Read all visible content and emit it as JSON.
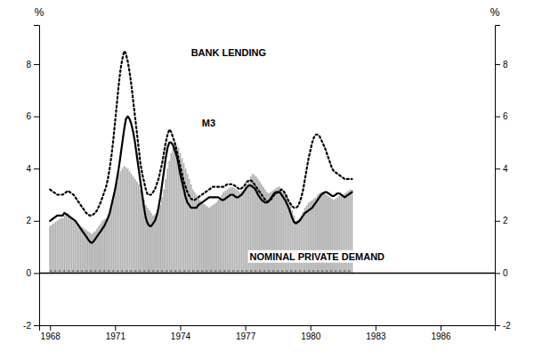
{
  "chart_data": {
    "type": "bar",
    "ylabel": "%",
    "y2label": "%",
    "xlim": [
      1967.5,
      1988.5
    ],
    "ylim": [
      -2,
      9.5
    ],
    "yticks": [
      -2,
      0,
      2,
      4,
      6,
      8
    ],
    "y2lim": [
      -2,
      9.5
    ],
    "y2ticks": [
      -2,
      0,
      2,
      4,
      6,
      8
    ],
    "xticks": [
      1968,
      1971,
      1974,
      1977,
      1980,
      1983,
      1986
    ],
    "grid": false,
    "x": [
      1968,
      1968.083333,
      1968.166667,
      1968.25,
      1968.333333,
      1968.416667,
      1968.5,
      1968.583333,
      1968.666667,
      1968.75,
      1968.833333,
      1968.916667,
      1969,
      1969.083333,
      1969.166667,
      1969.25,
      1969.333333,
      1969.416667,
      1969.5,
      1969.583333,
      1969.666667,
      1969.75,
      1969.833333,
      1969.916667,
      1970,
      1970.083333,
      1970.166667,
      1970.25,
      1970.333333,
      1970.416667,
      1970.5,
      1970.583333,
      1970.666667,
      1970.75,
      1970.833333,
      1970.916667,
      1971,
      1971.083333,
      1971.166667,
      1971.25,
      1971.333333,
      1971.416667,
      1971.5,
      1971.583333,
      1971.666667,
      1971.75,
      1971.833333,
      1971.916667,
      1972,
      1972.083333,
      1972.166667,
      1972.25,
      1972.333333,
      1972.416667,
      1972.5,
      1972.583333,
      1972.666667,
      1972.75,
      1972.833333,
      1972.916667,
      1973,
      1973.083333,
      1973.166667,
      1973.25,
      1973.333333,
      1973.416667,
      1973.5,
      1973.583333,
      1973.666667,
      1973.75,
      1973.833333,
      1973.916667,
      1974,
      1974.083333,
      1974.166667,
      1974.25,
      1974.333333,
      1974.416667,
      1974.5,
      1974.583333,
      1974.666667,
      1974.75,
      1974.833333,
      1974.916667,
      1975,
      1975.083333,
      1975.166667,
      1975.25,
      1975.333333,
      1975.416667,
      1975.5,
      1975.583333,
      1975.666667,
      1975.75,
      1975.833333,
      1975.916667,
      1976,
      1976.083333,
      1976.166667,
      1976.25,
      1976.333333,
      1976.416667,
      1976.5,
      1976.583333,
      1976.666667,
      1976.75,
      1976.833333,
      1976.916667,
      1977,
      1977.083333,
      1977.166667,
      1977.25,
      1977.333333,
      1977.416667,
      1977.5,
      1977.583333,
      1977.666667,
      1977.75,
      1977.833333,
      1977.916667,
      1978,
      1978.083333,
      1978.166667,
      1978.25,
      1978.333333,
      1978.416667,
      1978.5,
      1978.583333,
      1978.666667,
      1978.75,
      1978.833333,
      1978.916667,
      1979,
      1979.083333,
      1979.166667,
      1979.25,
      1979.333333,
      1979.416667,
      1979.5,
      1979.583333,
      1979.666667,
      1979.75,
      1979.833333,
      1979.916667,
      1980,
      1980.083333,
      1980.166667,
      1980.25,
      1980.333333,
      1980.416667,
      1980.5,
      1980.583333,
      1980.666667,
      1980.75,
      1980.833333,
      1980.916667,
      1981,
      1981.083333,
      1981.166667,
      1981.25,
      1981.333333,
      1981.416667,
      1981.5,
      1981.583333,
      1981.666667,
      1981.75,
      1981.833333,
      1981.916667
    ],
    "series": [
      {
        "type": "bar",
        "color": "#b0b0b0",
        "values": [
          1.8,
          1.85,
          1.9,
          1.95,
          2.0,
          2.05,
          2.1,
          2.1,
          2.2,
          2.25,
          2.3,
          2.2,
          2.1,
          2.0,
          1.95,
          1.9,
          1.85,
          1.8,
          1.75,
          1.7,
          1.65,
          1.6,
          1.55,
          1.5,
          1.55,
          1.6,
          1.7,
          1.8,
          1.9,
          2.0,
          2.05,
          2.1,
          2.2,
          2.3,
          2.5,
          2.8,
          3.2,
          3.5,
          3.8,
          3.9,
          4.0,
          4.1,
          4.05,
          4.0,
          3.9,
          3.8,
          3.7,
          3.6,
          3.5,
          3.4,
          3.2,
          3.0,
          2.8,
          2.6,
          2.5,
          2.4,
          2.3,
          2.2,
          2.25,
          2.3,
          2.4,
          2.6,
          2.9,
          3.2,
          3.6,
          4.0,
          4.3,
          4.6,
          4.8,
          5.0,
          4.9,
          4.8,
          4.6,
          4.4,
          4.2,
          4.0,
          3.8,
          3.6,
          3.4,
          3.2,
          3.1,
          3.0,
          2.9,
          2.8,
          2.7,
          2.65,
          2.6,
          2.55,
          2.5,
          2.55,
          2.6,
          2.65,
          2.7,
          2.8,
          2.9,
          3.0,
          3.1,
          3.15,
          3.2,
          3.25,
          3.3,
          3.3,
          3.25,
          3.2,
          3.15,
          3.1,
          3.15,
          3.2,
          3.3,
          3.4,
          3.55,
          3.7,
          3.8,
          3.75,
          3.7,
          3.6,
          3.5,
          3.4,
          3.3,
          3.2,
          3.1,
          3.05,
          3.1,
          3.15,
          3.2,
          3.25,
          3.3,
          3.3,
          3.25,
          3.2,
          3.1,
          3.0,
          2.8,
          2.6,
          2.4,
          2.2,
          2.0,
          2.05,
          2.1,
          2.2,
          2.35,
          2.5,
          2.6,
          2.7,
          2.75,
          2.8,
          2.85,
          2.9,
          3.0,
          3.05,
          3.1,
          3.1,
          3.05,
          3.0,
          2.95,
          2.9,
          2.85,
          2.8,
          2.85,
          2.9,
          2.95,
          3.0,
          3.0,
          3.05,
          3.1,
          3.15,
          3.2,
          3.2
        ]
      },
      {
        "type": "line",
        "line_style": "dotted",
        "color": "#000000",
        "values": [
          3.2,
          3.15,
          3.1,
          3.05,
          3.0,
          3.0,
          3.0,
          3.0,
          3.05,
          3.1,
          3.15,
          3.1,
          3.05,
          3.0,
          2.9,
          2.8,
          2.7,
          2.6,
          2.5,
          2.4,
          2.3,
          2.25,
          2.2,
          2.2,
          2.25,
          2.3,
          2.4,
          2.55,
          2.7,
          2.9,
          3.1,
          3.3,
          3.6,
          4.0,
          4.5,
          5.1,
          5.8,
          6.5,
          7.2,
          7.8,
          8.2,
          8.5,
          8.4,
          8.1,
          7.7,
          7.2,
          6.6,
          6.0,
          5.4,
          4.8,
          4.2,
          3.8,
          3.5,
          3.2,
          3.0,
          3.0,
          3.0,
          3.1,
          3.2,
          3.4,
          3.6,
          3.9,
          4.2,
          4.6,
          5.0,
          5.3,
          5.5,
          5.4,
          5.2,
          5.0,
          4.7,
          4.4,
          4.1,
          3.8,
          3.5,
          3.3,
          3.1,
          2.95,
          2.85,
          2.8,
          2.8,
          2.85,
          2.9,
          2.95,
          3.0,
          3.05,
          3.1,
          3.15,
          3.2,
          3.25,
          3.3,
          3.3,
          3.3,
          3.3,
          3.3,
          3.3,
          3.3,
          3.35,
          3.4,
          3.4,
          3.4,
          3.4,
          3.35,
          3.3,
          3.25,
          3.2,
          3.25,
          3.3,
          3.4,
          3.5,
          3.55,
          3.55,
          3.5,
          3.4,
          3.3,
          3.2,
          3.1,
          3.0,
          2.9,
          2.8,
          2.75,
          2.75,
          2.8,
          2.9,
          3.0,
          3.05,
          3.1,
          3.15,
          3.2,
          3.15,
          3.05,
          2.9,
          2.75,
          2.65,
          2.55,
          2.5,
          2.5,
          2.55,
          2.7,
          2.9,
          3.2,
          3.6,
          4.0,
          4.4,
          4.7,
          5.0,
          5.2,
          5.3,
          5.3,
          5.25,
          5.1,
          4.95,
          4.8,
          4.6,
          4.4,
          4.2,
          4.0,
          3.9,
          3.85,
          3.8,
          3.75,
          3.7,
          3.65,
          3.6,
          3.6,
          3.6,
          3.6,
          3.6
        ]
      },
      {
        "type": "line",
        "line_style": "solid",
        "color": "#000000",
        "values": [
          2.0,
          2.05,
          2.1,
          2.15,
          2.2,
          2.2,
          2.2,
          2.2,
          2.3,
          2.25,
          2.2,
          2.15,
          2.1,
          2.05,
          2.0,
          1.9,
          1.8,
          1.7,
          1.6,
          1.5,
          1.4,
          1.3,
          1.2,
          1.15,
          1.2,
          1.3,
          1.4,
          1.5,
          1.6,
          1.7,
          1.8,
          1.95,
          2.1,
          2.3,
          2.6,
          2.9,
          3.2,
          3.6,
          4.0,
          4.5,
          5.0,
          5.5,
          5.9,
          6.0,
          5.9,
          5.7,
          5.4,
          5.0,
          4.5,
          4.0,
          3.5,
          3.0,
          2.5,
          2.1,
          1.9,
          1.8,
          1.8,
          1.9,
          2.0,
          2.2,
          2.5,
          2.9,
          3.4,
          3.9,
          4.4,
          4.8,
          5.0,
          5.0,
          4.9,
          4.7,
          4.5,
          4.2,
          3.8,
          3.5,
          3.2,
          2.9,
          2.7,
          2.6,
          2.5,
          2.5,
          2.5,
          2.5,
          2.6,
          2.65,
          2.7,
          2.75,
          2.8,
          2.85,
          2.9,
          2.9,
          2.9,
          2.9,
          2.9,
          2.9,
          2.85,
          2.8,
          2.8,
          2.85,
          2.9,
          2.95,
          3.0,
          3.0,
          2.95,
          2.9,
          2.9,
          2.95,
          3.0,
          3.1,
          3.2,
          3.3,
          3.35,
          3.35,
          3.3,
          3.25,
          3.15,
          3.0,
          2.9,
          2.8,
          2.75,
          2.7,
          2.7,
          2.75,
          2.85,
          2.95,
          3.05,
          3.1,
          3.1,
          3.1,
          3.0,
          2.9,
          2.8,
          2.65,
          2.5,
          2.3,
          2.1,
          1.95,
          1.9,
          1.95,
          2.0,
          2.1,
          2.2,
          2.3,
          2.35,
          2.4,
          2.45,
          2.5,
          2.6,
          2.7,
          2.8,
          2.9,
          3.0,
          3.05,
          3.1,
          3.1,
          3.05,
          3.0,
          2.95,
          2.95,
          3.0,
          3.05,
          3.05,
          3.0,
          2.95,
          2.9,
          2.95,
          3.0,
          3.05,
          3.1
        ]
      }
    ],
    "reference_lines": [
      {
        "y": 0.08,
        "x": [
          1968,
          1981.916667
        ],
        "line_style": "dotted",
        "color": "#333333"
      },
      {
        "y": 0,
        "color": "#000000"
      }
    ],
    "annotations": [
      {
        "text": "BANK LENDING",
        "x": 1974.5,
        "y": 8.3
      },
      {
        "text": "M3",
        "x": 1975.0,
        "y": 5.6
      },
      {
        "text": "NOMINAL PRIVATE DEMAND",
        "x": 1977.2,
        "y": 0.5
      }
    ]
  }
}
